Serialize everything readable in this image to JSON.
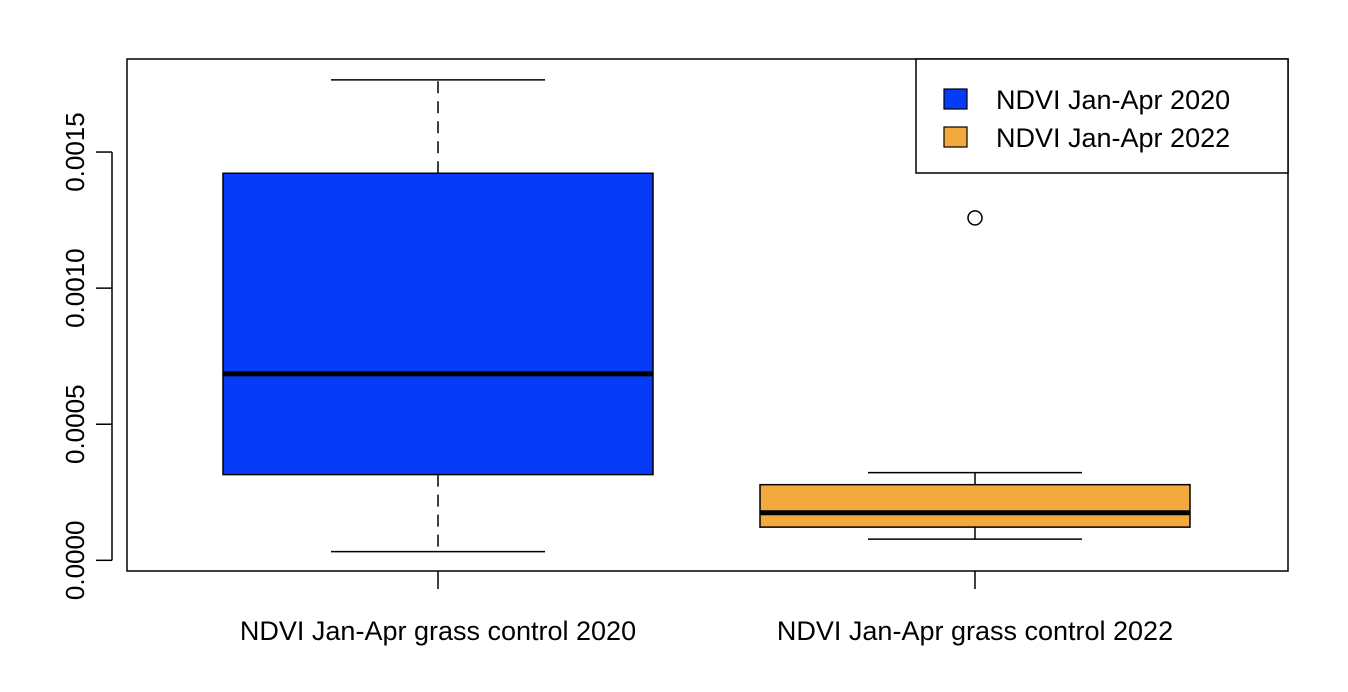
{
  "chart_data": {
    "type": "boxplot",
    "categories": [
      "NDVI Jan-Apr grass control 2020",
      "NDVI Jan-Apr grass control 2022"
    ],
    "boxes": [
      {
        "name": "NDVI Jan-Apr 2020",
        "color": "#063cf8",
        "whisker_low": 3.2e-05,
        "q1": 0.000315,
        "median": 0.000685,
        "q3": 0.001422,
        "whisker_high": 0.001765,
        "outliers": []
      },
      {
        "name": "NDVI Jan-Apr 2022",
        "color": "#f3a93d",
        "whisker_low": 7.8e-05,
        "q1": 0.000122,
        "median": 0.000175,
        "q3": 0.000278,
        "whisker_high": 0.000322,
        "outliers": [
          0.001258
        ]
      }
    ],
    "y_ticks": [
      "0.0000",
      "0.0005",
      "0.0010",
      "0.0015"
    ],
    "ylim": [
      -3.92e-05,
      0.0018418
    ],
    "title": "",
    "xlabel": "",
    "ylabel": "",
    "legend": {
      "position": "top-right",
      "entries": [
        {
          "label": "NDVI Jan-Apr 2020",
          "color": "#063cf8"
        },
        {
          "label": "NDVI Jan-Apr 2022",
          "color": "#f3a93d"
        }
      ]
    },
    "grid": false
  }
}
